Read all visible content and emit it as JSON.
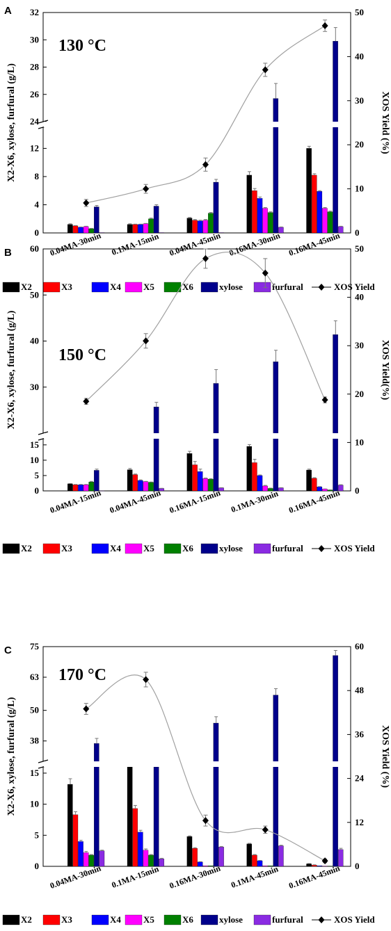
{
  "legend": {
    "series": [
      "X2",
      "X3",
      "X4",
      "X5",
      "X6",
      "xylose",
      "furfural"
    ],
    "yield": "XOS Yield"
  },
  "colors": {
    "X2": "#000000",
    "X3": "#ff0000",
    "X4": "#0000ff",
    "X5": "#ff00ff",
    "X6": "#008000",
    "xylose": "#00008b",
    "furfural": "#8a2be2",
    "yield_line": "#a0a0a0",
    "yield_marker": "#000000"
  },
  "chart_data": [
    {
      "type": "bar",
      "panel_label": "A",
      "temperature_label": "130 °C",
      "ylabel": "X2-X6, xylose, furfural (g/L)",
      "ylabel_right": "XOS Yield (%)",
      "categories": [
        "0.04MA-30min",
        "0.1MA-15min",
        "0.04MA-45min",
        "0.16MA-30min",
        "0.16MA-45min"
      ],
      "left_axis": {
        "broken": true,
        "lower_range": [
          0,
          15
        ],
        "lower_ticks": [
          "0",
          "4",
          "8",
          "12"
        ],
        "lower_tick_values": [
          0,
          4,
          8,
          12
        ],
        "upper_range": [
          24,
          32
        ],
        "upper_ticks": [
          "24",
          "26",
          "28",
          "30",
          "32"
        ],
        "upper_tick_values": [
          24,
          26,
          28,
          30,
          32
        ]
      },
      "right_axis": {
        "range": [
          0,
          50
        ],
        "ticks": [
          "0",
          "10",
          "20",
          "30",
          "40",
          "50"
        ],
        "tick_values": [
          0,
          10,
          20,
          30,
          40,
          50
        ]
      },
      "series": [
        {
          "name": "X2",
          "values": [
            1.2,
            1.2,
            2.1,
            8.2,
            12.0
          ],
          "errors": [
            0.1,
            0.1,
            0.1,
            0.5,
            0.3
          ]
        },
        {
          "name": "X3",
          "values": [
            1.0,
            1.2,
            1.8,
            6.0,
            8.2
          ],
          "errors": [
            0.05,
            0.05,
            0.1,
            0.3,
            0.2
          ]
        },
        {
          "name": "X4",
          "values": [
            0.8,
            1.2,
            1.7,
            4.9,
            5.9
          ],
          "errors": [
            0.05,
            0.05,
            0.1,
            0.2,
            0.1
          ]
        },
        {
          "name": "X5",
          "values": [
            0.9,
            1.3,
            1.8,
            3.5,
            3.5
          ],
          "errors": [
            0.05,
            0.05,
            0.1,
            0.1,
            0.1
          ]
        },
        {
          "name": "X6",
          "values": [
            0.6,
            2.0,
            2.8,
            2.9,
            3.0
          ],
          "errors": [
            0.05,
            0.1,
            0.1,
            0.1,
            0.1
          ]
        },
        {
          "name": "xylose",
          "values": [
            3.7,
            3.8,
            7.2,
            25.7,
            29.9
          ],
          "errors": [
            0.2,
            0.2,
            0.4,
            1.1,
            1.0
          ]
        },
        {
          "name": "furfural",
          "values": [
            0.05,
            0.05,
            0.05,
            0.8,
            0.9
          ],
          "errors": [
            0,
            0,
            0,
            0.05,
            0.05
          ]
        }
      ],
      "yield": {
        "name": "XOS Yield",
        "values": [
          6.8,
          10.0,
          15.5,
          37.0,
          47.0
        ],
        "errors": [
          0.8,
          1.0,
          1.5,
          1.5,
          1.3
        ]
      }
    },
    {
      "type": "bar",
      "panel_label": "B",
      "temperature_label": "150 °C",
      "ylabel": "X2-X6, xylose, furfural (g/L)",
      "ylabel_right": "XOS Yield(%)",
      "categories": [
        "0.04MA-15min",
        "0.04MA-45min",
        "0.16MA-15min",
        "0.1MA-30min",
        "0.16MA-45min"
      ],
      "left_axis": {
        "broken": true,
        "lower_range": [
          0,
          17
        ],
        "lower_ticks": [
          "0",
          "5",
          "10",
          "15"
        ],
        "lower_tick_values": [
          0,
          5,
          10,
          15
        ],
        "upper_range": [
          20,
          60
        ],
        "upper_ticks": [
          "30",
          "40",
          "50",
          "60"
        ],
        "upper_tick_values": [
          30,
          40,
          50,
          60
        ]
      },
      "right_axis": {
        "range": [
          0,
          50
        ],
        "ticks": [
          "0",
          "10",
          "20",
          "30",
          "40",
          "50"
        ],
        "tick_values": [
          0,
          10,
          20,
          30,
          40,
          50
        ]
      },
      "series": [
        {
          "name": "X2",
          "values": [
            2.3,
            6.9,
            12.2,
            14.5,
            6.8
          ],
          "errors": [
            0.1,
            0.4,
            0.7,
            0.6,
            0.3
          ]
        },
        {
          "name": "X3",
          "values": [
            2.0,
            5.3,
            8.5,
            9.2,
            4.1
          ],
          "errors": [
            0.1,
            0.2,
            1.1,
            1.1,
            0.2
          ]
        },
        {
          "name": "X4",
          "values": [
            2.0,
            3.4,
            6.3,
            5.0,
            1.3
          ],
          "errors": [
            0.1,
            0.2,
            0.8,
            0.2,
            0.1
          ]
        },
        {
          "name": "X5",
          "values": [
            2.0,
            3.0,
            4.0,
            1.6,
            0.6
          ],
          "errors": [
            0.1,
            0.1,
            0.2,
            0.2,
            0.05
          ]
        },
        {
          "name": "X6",
          "values": [
            2.9,
            2.8,
            3.8,
            0.8,
            0.3
          ],
          "errors": [
            0.2,
            0.1,
            0.2,
            0.1,
            0.05
          ]
        },
        {
          "name": "xylose",
          "values": [
            6.7,
            25.7,
            30.8,
            35.5,
            41.4
          ],
          "errors": [
            0.4,
            1.0,
            3.0,
            2.5,
            3.0
          ]
        },
        {
          "name": "furfural",
          "values": [
            0.05,
            0.8,
            1.0,
            1.0,
            1.9
          ],
          "errors": [
            0,
            0.05,
            0.05,
            0.05,
            0.1
          ]
        }
      ],
      "yield": {
        "name": "XOS Yield",
        "values": [
          18.5,
          31.0,
          48.0,
          45.0,
          18.8
        ],
        "errors": [
          0.6,
          1.5,
          2.0,
          3.0,
          0.6
        ]
      }
    },
    {
      "type": "bar",
      "panel_label": "C",
      "temperature_label": "170 °C",
      "ylabel": "X2-X6, xylose, furfural (g/L)",
      "ylabel_right": "XOS Yield (%)",
      "categories": [
        "0.04MA-30min",
        "0.1MA-15min",
        "0.16MA-30min",
        "0.1MA-45min",
        "0.16MA-45min"
      ],
      "left_axis": {
        "broken": true,
        "lower_range": [
          0,
          16
        ],
        "lower_ticks": [
          "0",
          "5",
          "10",
          "15"
        ],
        "lower_tick_values": [
          0,
          5,
          10,
          15
        ],
        "upper_range": [
          30,
          75
        ],
        "upper_ticks": [
          "38",
          "50",
          "63",
          "75"
        ],
        "upper_tick_values": [
          38,
          50,
          63,
          75
        ]
      },
      "right_axis": {
        "range": [
          0,
          60
        ],
        "ticks": [
          "0",
          "12",
          "24",
          "36",
          "48",
          "60"
        ],
        "tick_values": [
          0,
          12,
          24,
          36,
          48,
          60
        ]
      },
      "series": [
        {
          "name": "X2",
          "values": [
            13.2,
            16.0,
            4.8,
            3.6,
            0.4
          ],
          "errors": [
            0.9,
            0,
            0.1,
            0.1,
            0.05
          ]
        },
        {
          "name": "X3",
          "values": [
            8.3,
            9.3,
            2.9,
            1.8,
            0.2
          ],
          "errors": [
            0.5,
            0.5,
            0.1,
            0.1,
            0.05
          ]
        },
        {
          "name": "X4",
          "values": [
            4.0,
            5.5,
            0.7,
            0.9,
            0.1
          ],
          "errors": [
            0.2,
            0.3,
            0.05,
            0.05,
            0
          ]
        },
        {
          "name": "X5",
          "values": [
            2.2,
            2.6,
            0.1,
            0.1,
            0.05
          ],
          "errors": [
            0.2,
            0.2,
            0,
            0,
            0
          ]
        },
        {
          "name": "X6",
          "values": [
            1.8,
            1.8,
            0.1,
            0.1,
            0.05
          ],
          "errors": [
            0.1,
            0.1,
            0,
            0,
            0
          ]
        },
        {
          "name": "xylose",
          "values": [
            37.0,
            16.0,
            45.0,
            56.0,
            71.5
          ],
          "errors": [
            2.0,
            0,
            2.5,
            2.5,
            2.0
          ]
        },
        {
          "name": "furfural",
          "values": [
            2.5,
            1.2,
            3.1,
            3.3,
            2.7
          ],
          "errors": [
            0.1,
            0.1,
            0.1,
            0.1,
            0.2
          ]
        }
      ],
      "yield": {
        "name": "XOS Yield",
        "values": [
          43.0,
          51.0,
          12.5,
          10.0,
          1.5
        ],
        "errors": [
          1.5,
          2.0,
          1.5,
          1.0,
          0.5
        ]
      }
    }
  ]
}
